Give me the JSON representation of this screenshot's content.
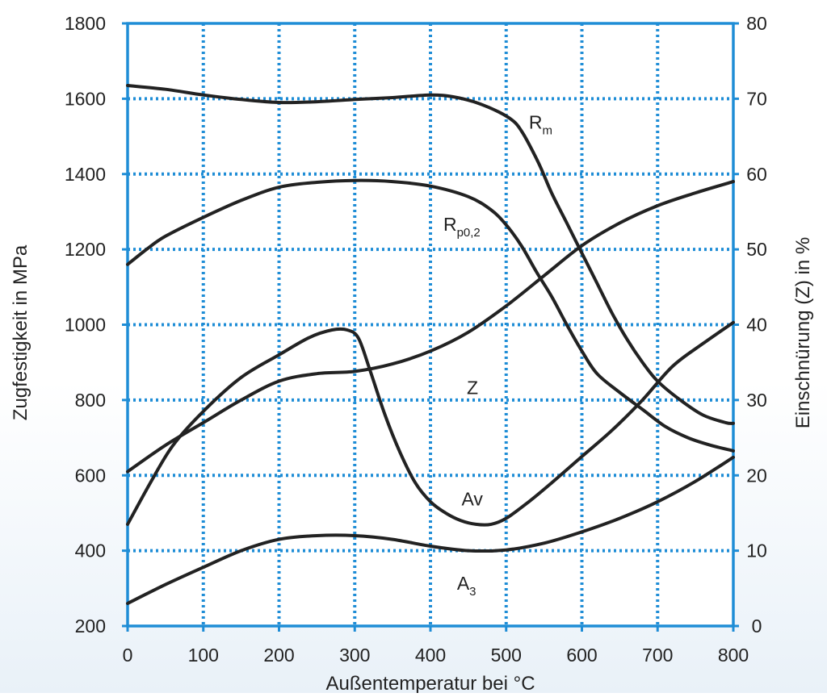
{
  "chart_data": {
    "type": "line",
    "xlabel": "Außentemperatur bei °C",
    "ylabel_left": "Zugfestigkeit in MPa",
    "ylabel_right": "Einschnürung (Z) in %",
    "xlim": [
      0,
      800
    ],
    "ylim_left": [
      200,
      1800
    ],
    "ylim_right": [
      0,
      80
    ],
    "x_ticks": [
      "0",
      "100",
      "200",
      "300",
      "400",
      "500",
      "600",
      "700",
      "800"
    ],
    "y_ticks_left": [
      "200",
      "400",
      "600",
      "800",
      "1000",
      "1200",
      "1400",
      "1600",
      "1800"
    ],
    "y_ticks_right": [
      "0",
      "10",
      "20",
      "30",
      "40",
      "50",
      "60",
      "70",
      "80"
    ],
    "grid": true,
    "frame_color": "#1f8dd6",
    "grid_color": "#1f8dd6",
    "line_color": "#222222",
    "series": [
      {
        "id": "rm",
        "axis": "left",
        "label_text": "R",
        "label_sub": "m",
        "label_at": [
          530,
          1520
        ],
        "points": [
          [
            0,
            1635
          ],
          [
            50,
            1625
          ],
          [
            100,
            1610
          ],
          [
            150,
            1598
          ],
          [
            200,
            1590
          ],
          [
            250,
            1592
          ],
          [
            300,
            1598
          ],
          [
            350,
            1603
          ],
          [
            400,
            1610
          ],
          [
            430,
            1605
          ],
          [
            460,
            1590
          ],
          [
            490,
            1565
          ],
          [
            510,
            1540
          ],
          [
            520,
            1515
          ],
          [
            530,
            1480
          ],
          [
            545,
            1420
          ],
          [
            560,
            1350
          ],
          [
            580,
            1270
          ],
          [
            600,
            1190
          ],
          [
            620,
            1110
          ],
          [
            640,
            1030
          ],
          [
            660,
            960
          ],
          [
            680,
            900
          ],
          [
            700,
            850
          ],
          [
            730,
            800
          ],
          [
            760,
            760
          ],
          [
            790,
            740
          ],
          [
            800,
            738
          ]
        ]
      },
      {
        "id": "rp02",
        "axis": "left",
        "label_text": "R",
        "label_sub": "p0,2",
        "label_at": [
          417,
          1250
        ],
        "points": [
          [
            0,
            1160
          ],
          [
            25,
            1200
          ],
          [
            50,
            1235
          ],
          [
            100,
            1285
          ],
          [
            150,
            1330
          ],
          [
            200,
            1365
          ],
          [
            250,
            1378
          ],
          [
            300,
            1383
          ],
          [
            350,
            1380
          ],
          [
            400,
            1368
          ],
          [
            450,
            1340
          ],
          [
            480,
            1305
          ],
          [
            500,
            1265
          ],
          [
            520,
            1210
          ],
          [
            540,
            1140
          ],
          [
            560,
            1075
          ],
          [
            580,
            1000
          ],
          [
            600,
            930
          ],
          [
            620,
            870
          ],
          [
            650,
            820
          ],
          [
            680,
            775
          ],
          [
            710,
            730
          ],
          [
            740,
            700
          ],
          [
            770,
            680
          ],
          [
            800,
            665
          ]
        ]
      },
      {
        "id": "z",
        "axis": "right",
        "label_text": "Z",
        "label_sub": "",
        "label_at": [
          448,
          30.8
        ],
        "points": [
          [
            0,
            20.5
          ],
          [
            50,
            24
          ],
          [
            100,
            27
          ],
          [
            150,
            30
          ],
          [
            200,
            32.5
          ],
          [
            250,
            33.5
          ],
          [
            300,
            33.8
          ],
          [
            350,
            34.8
          ],
          [
            400,
            36.5
          ],
          [
            450,
            39
          ],
          [
            500,
            42.5
          ],
          [
            550,
            46.5
          ],
          [
            600,
            50.5
          ],
          [
            650,
            53.5
          ],
          [
            700,
            55.8
          ],
          [
            750,
            57.5
          ],
          [
            800,
            59
          ]
        ]
      },
      {
        "id": "av",
        "axis": "right",
        "label_text": "Av",
        "label_sub": "",
        "label_at": [
          441,
          16
        ],
        "points": [
          [
            0,
            13.5
          ],
          [
            30,
            19
          ],
          [
            60,
            24
          ],
          [
            100,
            28.5
          ],
          [
            150,
            33
          ],
          [
            200,
            36
          ],
          [
            240,
            38.3
          ],
          [
            270,
            39.3
          ],
          [
            290,
            39.3
          ],
          [
            305,
            38.2
          ],
          [
            320,
            34
          ],
          [
            340,
            28
          ],
          [
            360,
            23
          ],
          [
            380,
            19
          ],
          [
            400,
            16.5
          ],
          [
            420,
            15
          ],
          [
            440,
            14
          ],
          [
            460,
            13.5
          ],
          [
            480,
            13.5
          ],
          [
            500,
            14.3
          ],
          [
            530,
            16.5
          ],
          [
            560,
            19
          ],
          [
            600,
            22.5
          ],
          [
            640,
            26
          ],
          [
            680,
            30
          ],
          [
            720,
            34.5
          ],
          [
            760,
            37.5
          ],
          [
            800,
            40.3
          ]
        ]
      },
      {
        "id": "a3",
        "axis": "right",
        "label_text": "A",
        "label_sub": "3",
        "label_at": [
          435,
          4.8
        ],
        "points": [
          [
            0,
            3
          ],
          [
            50,
            5.5
          ],
          [
            100,
            7.8
          ],
          [
            150,
            10
          ],
          [
            200,
            11.5
          ],
          [
            250,
            12
          ],
          [
            300,
            12
          ],
          [
            350,
            11.5
          ],
          [
            400,
            10.6
          ],
          [
            450,
            10
          ],
          [
            500,
            10.1
          ],
          [
            550,
            11
          ],
          [
            600,
            12.5
          ],
          [
            650,
            14.3
          ],
          [
            700,
            16.5
          ],
          [
            750,
            19.2
          ],
          [
            800,
            22.4
          ]
        ]
      }
    ]
  }
}
